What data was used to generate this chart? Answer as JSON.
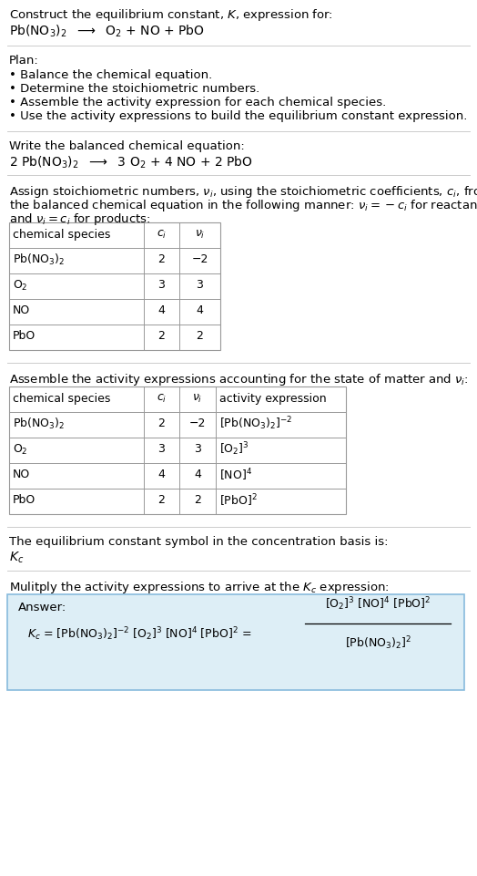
{
  "title_line1": "Construct the equilibrium constant, $K$, expression for:",
  "title_line2": "Pb(NO$_3$)$_2$  $\\longrightarrow$  O$_2$ + NO + PbO",
  "plan_header": "Plan:",
  "plan_bullets": [
    "• Balance the chemical equation.",
    "• Determine the stoichiometric numbers.",
    "• Assemble the activity expression for each chemical species.",
    "• Use the activity expressions to build the equilibrium constant expression."
  ],
  "balanced_eq_header": "Write the balanced chemical equation:",
  "balanced_eq": "2 Pb(NO$_3$)$_2$  $\\longrightarrow$  3 O$_2$ + 4 NO + 2 PbO",
  "stoich_intro1": "Assign stoichiometric numbers, $\\nu_i$, using the stoichiometric coefficients, $c_i$, from",
  "stoich_intro2": "the balanced chemical equation in the following manner: $\\nu_i = -c_i$ for reactants",
  "stoich_intro3": "and $\\nu_i = c_i$ for products:",
  "table1_headers": [
    "chemical species",
    "$c_i$",
    "$\\nu_i$"
  ],
  "table1_rows": [
    [
      "Pb(NO$_3$)$_2$",
      "2",
      "−2"
    ],
    [
      "O$_2$",
      "3",
      "3"
    ],
    [
      "NO",
      "4",
      "4"
    ],
    [
      "PbO",
      "2",
      "2"
    ]
  ],
  "assemble_intro": "Assemble the activity expressions accounting for the state of matter and $\\nu_i$:",
  "table2_headers": [
    "chemical species",
    "$c_i$",
    "$\\nu_i$",
    "activity expression"
  ],
  "table2_rows": [
    [
      "Pb(NO$_3$)$_2$",
      "2",
      "−2",
      "[Pb(NO$_3$)$_2$]$^{-2}$"
    ],
    [
      "O$_2$",
      "3",
      "3",
      "[O$_2$]$^3$"
    ],
    [
      "NO",
      "4",
      "4",
      "[NO]$^4$"
    ],
    [
      "PbO",
      "2",
      "2",
      "[PbO]$^2$"
    ]
  ],
  "kc_text": "The equilibrium constant symbol in the concentration basis is:",
  "kc_symbol": "$K_c$",
  "multiply_text": "Mulitply the activity expressions to arrive at the $K_c$ expression:",
  "answer_label": "Answer:",
  "kc_expr_left": "$K_c$ = [Pb(NO$_3$)$_2$]$^{-2}$ [O$_2$]$^3$ [NO]$^4$ [PbO]$^2$ =",
  "kc_expr_num": "[O$_2$]$^3$ [NO]$^4$ [PbO]$^2$",
  "kc_expr_den": "[Pb(NO$_3$)$_2$]$^2$",
  "bg_color": "#ffffff",
  "answer_box_facecolor": "#ddeef6",
  "answer_box_edgecolor": "#88bbdd",
  "table_line_color": "#999999",
  "sep_line_color": "#cccccc",
  "text_color": "#000000"
}
